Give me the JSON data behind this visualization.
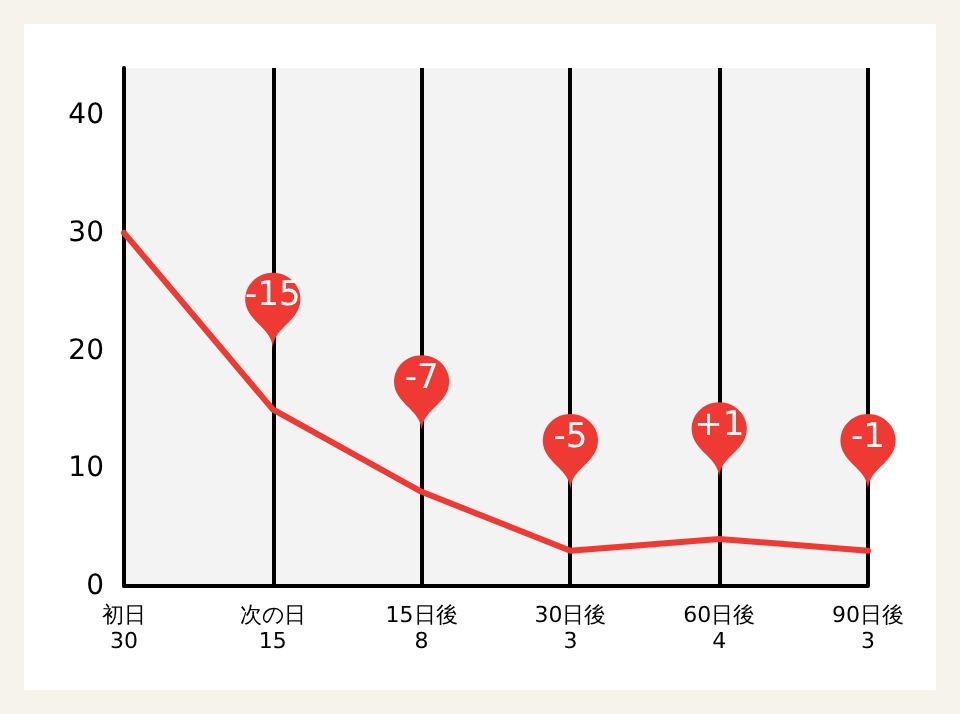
{
  "chart_data": {
    "type": "line",
    "categories": [
      "初日\n30",
      "次の日\n15",
      "15日後\n8",
      "30日後\n3",
      "60日後\n4",
      "90日後\n3"
    ],
    "series": [
      {
        "color": "#ee3a32",
        "values": [
          30,
          15,
          8,
          3,
          4,
          3
        ]
      }
    ],
    "ylim": [
      0,
      44
    ],
    "yticks": [
      0,
      10,
      20,
      30,
      40
    ],
    "grid": "x",
    "marker": "none",
    "line_style": "solid",
    "annotations": [
      "-15",
      "-7",
      "-5",
      "+1",
      "-1"
    ]
  }
}
